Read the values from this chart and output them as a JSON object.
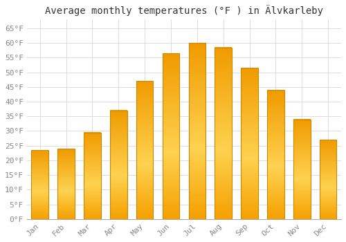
{
  "title": "Average monthly temperatures (°F ) in Älvkarleby",
  "months": [
    "Jan",
    "Feb",
    "Mar",
    "Apr",
    "May",
    "Jun",
    "Jul",
    "Aug",
    "Sep",
    "Oct",
    "Nov",
    "Dec"
  ],
  "values": [
    23.5,
    24.0,
    29.5,
    37.0,
    47.0,
    56.5,
    60.0,
    58.5,
    51.5,
    44.0,
    34.0,
    27.0
  ],
  "bar_color_top": "#FFCC44",
  "bar_color_mid": "#FFAA00",
  "bar_color_bot": "#FF9900",
  "bar_edge_color": "#CC8800",
  "background_color": "#FFFFFF",
  "plot_bg_color": "#FFFFFF",
  "grid_color": "#DDDDDD",
  "ylim": [
    0,
    68
  ],
  "yticks": [
    0,
    5,
    10,
    15,
    20,
    25,
    30,
    35,
    40,
    45,
    50,
    55,
    60,
    65
  ],
  "title_fontsize": 10,
  "tick_fontsize": 8,
  "tick_color": "#888888",
  "font_family": "monospace"
}
